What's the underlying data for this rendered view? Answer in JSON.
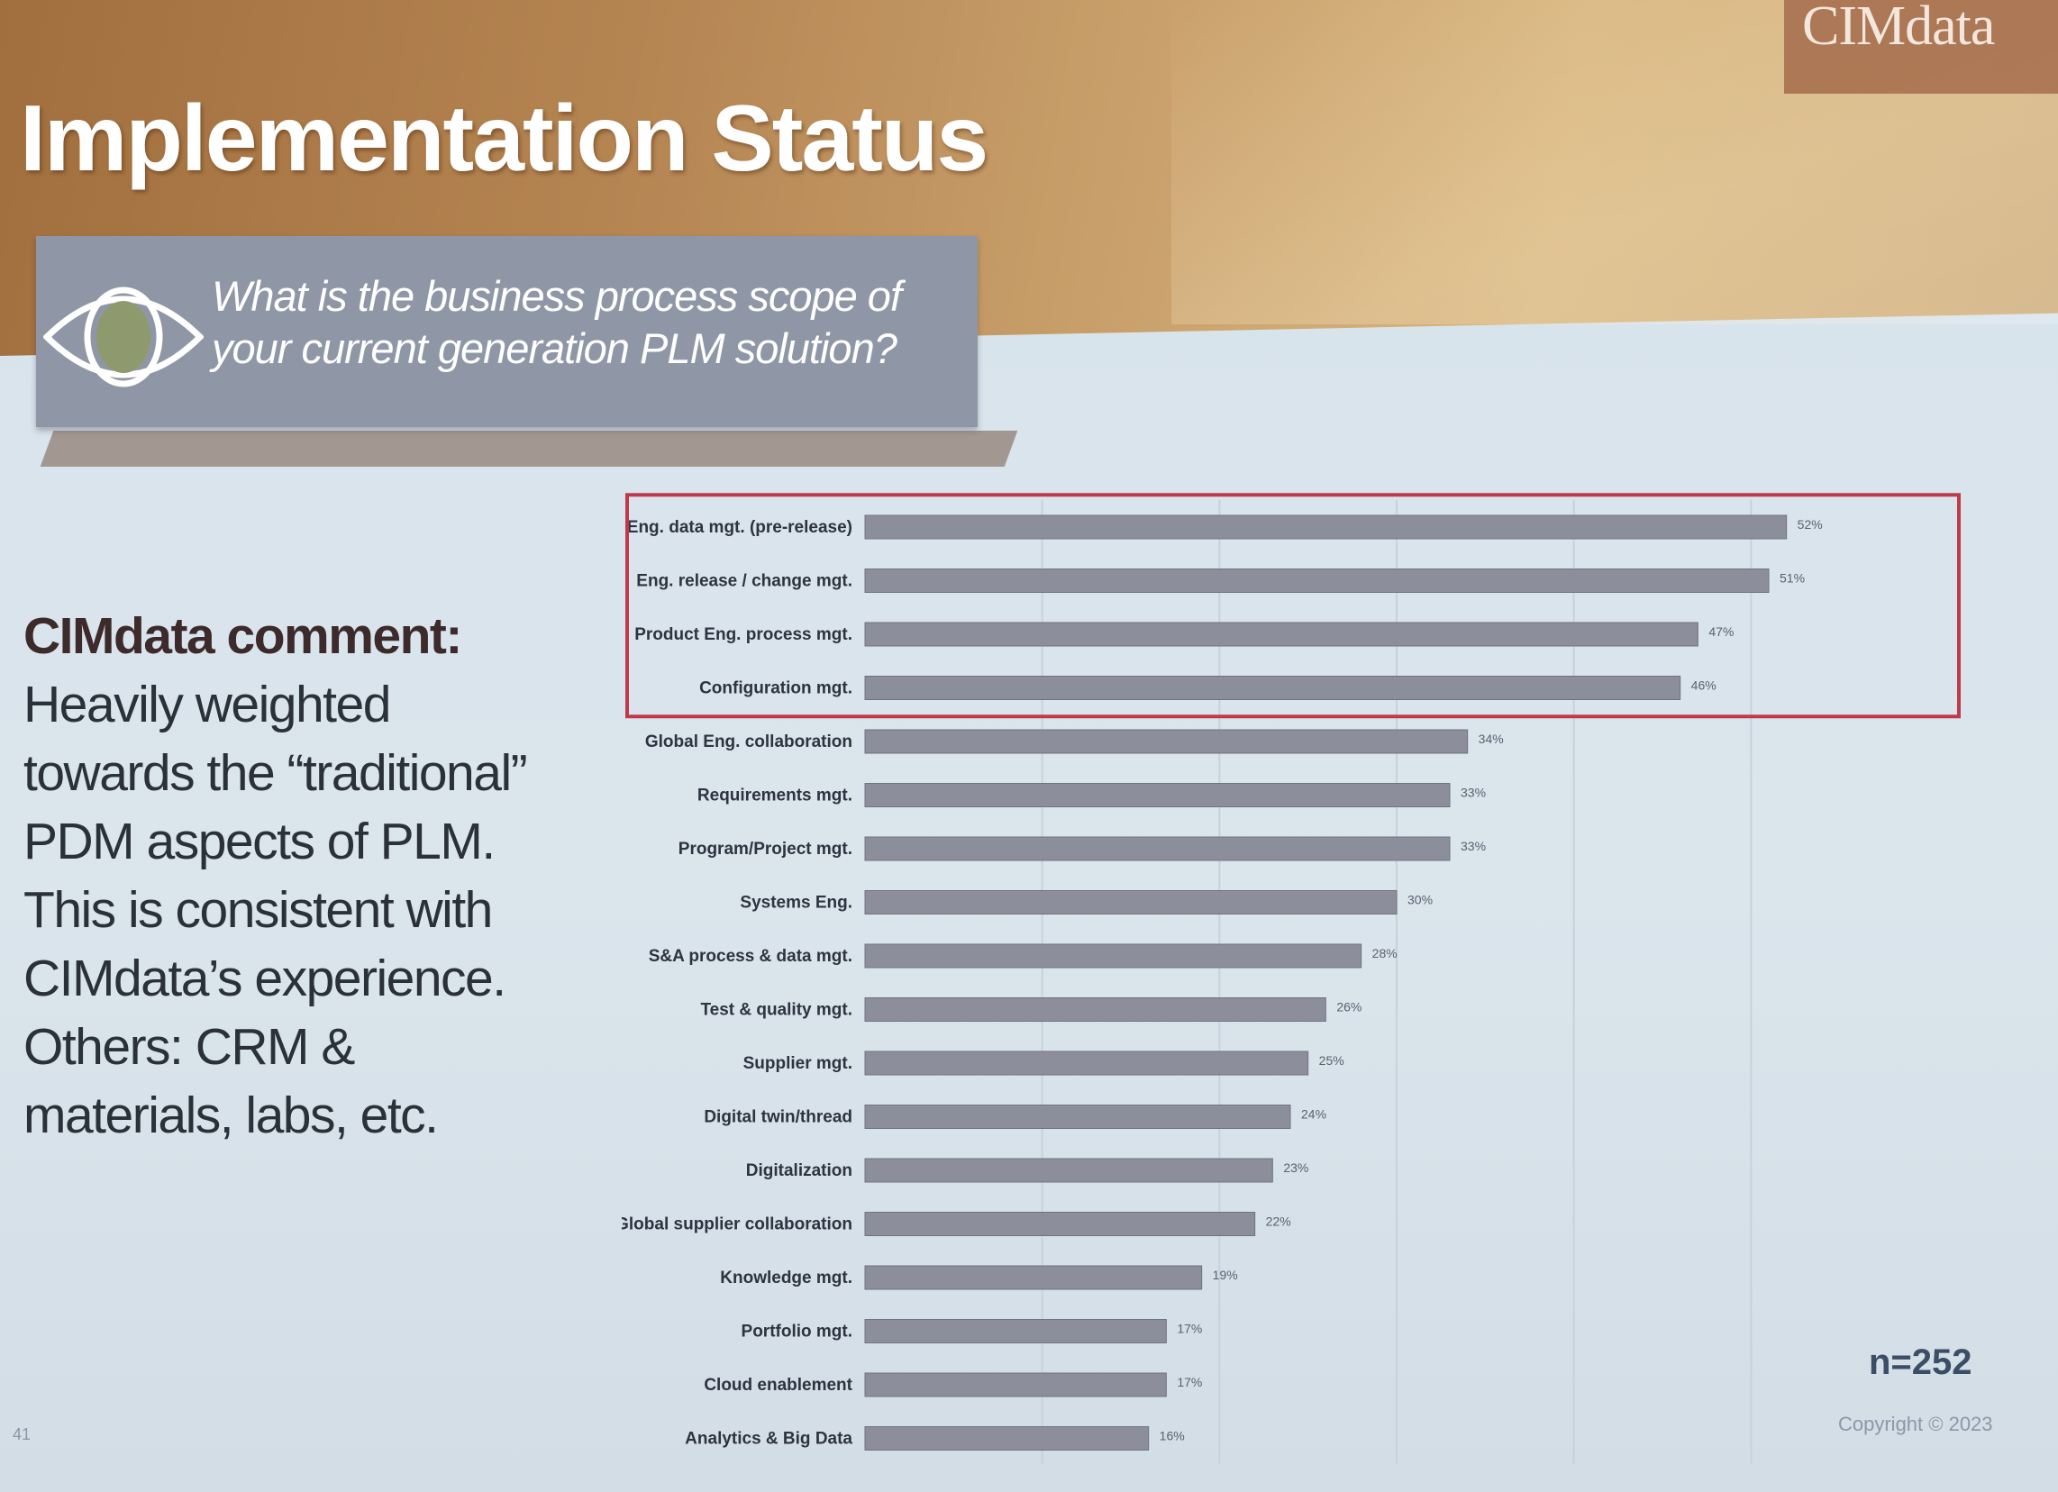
{
  "slide": {
    "title": "Implementation Status",
    "logo_text": "CIMdata",
    "question": "What is the business process scope of your current generation PLM solution?",
    "comment_lead": "CIMdata comment:",
    "comment_body": " Heavily weighted towards the “traditional” PDM aspects of PLM. This is consistent with CIMdata’s experience. Others: CRM & materials, labs, etc.",
    "sample_size": "n=252",
    "copyright": "Copyright © 2023",
    "page_number": "41"
  },
  "icons": {
    "question_icon": "eye-icon"
  },
  "colors": {
    "bar": "#8c8f9b",
    "highlight_box": "#c0394b",
    "header": "#b48451",
    "question_box": "#8f97a6"
  },
  "chart_data": {
    "type": "bar",
    "orientation": "horizontal",
    "categories": [
      "Eng. data mgt. (pre-release)",
      "Eng. release / change mgt.",
      "Product Eng. process mgt.",
      "Configuration mgt.",
      "Global Eng. collaboration",
      "Requirements mgt.",
      "Program/Project mgt.",
      "Systems Eng.",
      "S&A process & data mgt.",
      "Test & quality mgt.",
      "Supplier mgt.",
      "Digital twin/thread",
      "Digitalization",
      "Global supplier collaboration",
      "Knowledge mgt.",
      "Portfolio mgt.",
      "Cloud enablement",
      "Analytics & Big Data"
    ],
    "values": [
      52,
      51,
      47,
      46,
      34,
      33,
      33,
      30,
      28,
      26,
      25,
      24,
      23,
      22,
      19,
      17,
      17,
      16
    ],
    "value_labels": [
      "52%",
      "51%",
      "47%",
      "46%",
      "34%",
      "33%",
      "33%",
      "30%",
      "28%",
      "26%",
      "25%",
      "24%",
      "23%",
      "22%",
      "19%",
      "17%",
      "17%",
      "16%"
    ],
    "xlim": [
      0,
      60
    ],
    "highlighted_categories": 4,
    "grid": true,
    "legend": "none"
  }
}
